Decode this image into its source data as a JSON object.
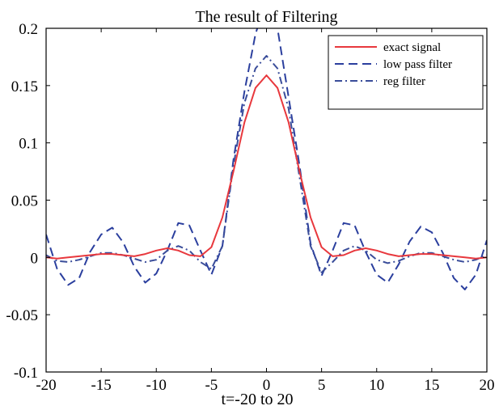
{
  "chart_data": {
    "type": "line",
    "title": "The result of Filtering",
    "xlabel": "t=-20 to 20",
    "ylabel": "",
    "xlim": [
      -20,
      20
    ],
    "ylim": [
      -0.1,
      0.2
    ],
    "xticks": [
      "-20",
      "-15",
      "-10",
      "-5",
      "0",
      "5",
      "10",
      "15",
      "20"
    ],
    "yticks": [
      "-0.1",
      "-0.05",
      "0",
      "0.05",
      "0.1",
      "0.15",
      "0.2"
    ],
    "grid": false,
    "legend_position": "top-right",
    "series": [
      {
        "name": "exact signal",
        "color": "#e8383d",
        "dash": "solid",
        "x": [
          -20,
          -19,
          -18,
          -17,
          -16,
          -15,
          -14,
          -13,
          -12,
          -11,
          -10,
          -9,
          -8,
          -7,
          -6,
          -5,
          -4,
          -3,
          -2,
          -1,
          0,
          1,
          2,
          3,
          4,
          5,
          6,
          7,
          8,
          9,
          10,
          11,
          12,
          13,
          14,
          15,
          16,
          17,
          18,
          19,
          20
        ],
        "y": [
          0,
          -0.001,
          0,
          0.001,
          0.002,
          0.003,
          0.003,
          0.002,
          0.001,
          0.003,
          0.006,
          0.008,
          0.006,
          0.002,
          0.001,
          0.009,
          0.035,
          0.075,
          0.118,
          0.148,
          0.159,
          0.148,
          0.118,
          0.075,
          0.035,
          0.009,
          0.001,
          0.002,
          0.006,
          0.008,
          0.006,
          0.003,
          0.001,
          0.002,
          0.003,
          0.003,
          0.002,
          0.001,
          0,
          -0.001,
          0
        ]
      },
      {
        "name": "low pass filter",
        "color": "#2b3f9e",
        "dash": "long-dash",
        "x": [
          -20,
          -19,
          -18,
          -17,
          -16,
          -15,
          -14,
          -13,
          -12,
          -11,
          -10,
          -9,
          -8,
          -7,
          -6,
          -5,
          -4,
          -3,
          -2,
          -1,
          0,
          1,
          2,
          3,
          4,
          5,
          6,
          7,
          8,
          9,
          10,
          11,
          12,
          13,
          14,
          15,
          16,
          17,
          18,
          19,
          20
        ],
        "y": [
          0.02,
          -0.01,
          -0.024,
          -0.018,
          0.005,
          0.02,
          0.026,
          0.013,
          -0.008,
          -0.022,
          -0.014,
          0.006,
          0.03,
          0.028,
          0.006,
          -0.015,
          0.01,
          0.085,
          0.145,
          0.195,
          0.225,
          0.2,
          0.14,
          0.08,
          0.012,
          -0.016,
          0.006,
          0.03,
          0.028,
          0.005,
          -0.015,
          -0.022,
          -0.006,
          0.014,
          0.027,
          0.022,
          0.004,
          -0.018,
          -0.028,
          -0.015,
          0.015
        ]
      },
      {
        "name": "reg filter",
        "color": "#3a4d9a",
        "dash": "dash-dot",
        "x": [
          -20,
          -19,
          -18,
          -17,
          -16,
          -15,
          -14,
          -13,
          -12,
          -11,
          -10,
          -9,
          -8,
          -7,
          -6,
          -5,
          -4,
          -3,
          -2,
          -1,
          0,
          1,
          2,
          3,
          4,
          5,
          6,
          7,
          8,
          9,
          10,
          11,
          12,
          13,
          14,
          15,
          16,
          17,
          18,
          19,
          20
        ],
        "y": [
          0.002,
          -0.003,
          -0.004,
          -0.002,
          0.001,
          0.004,
          0.004,
          0.002,
          -0.001,
          -0.004,
          -0.002,
          0.006,
          0.01,
          0.006,
          -0.004,
          -0.01,
          0.01,
          0.08,
          0.135,
          0.165,
          0.176,
          0.165,
          0.13,
          0.07,
          0.01,
          -0.013,
          -0.004,
          0.006,
          0.01,
          0.006,
          -0.002,
          -0.005,
          -0.003,
          0.001,
          0.004,
          0.004,
          0.001,
          -0.002,
          -0.004,
          -0.002,
          0.002
        ]
      }
    ]
  }
}
